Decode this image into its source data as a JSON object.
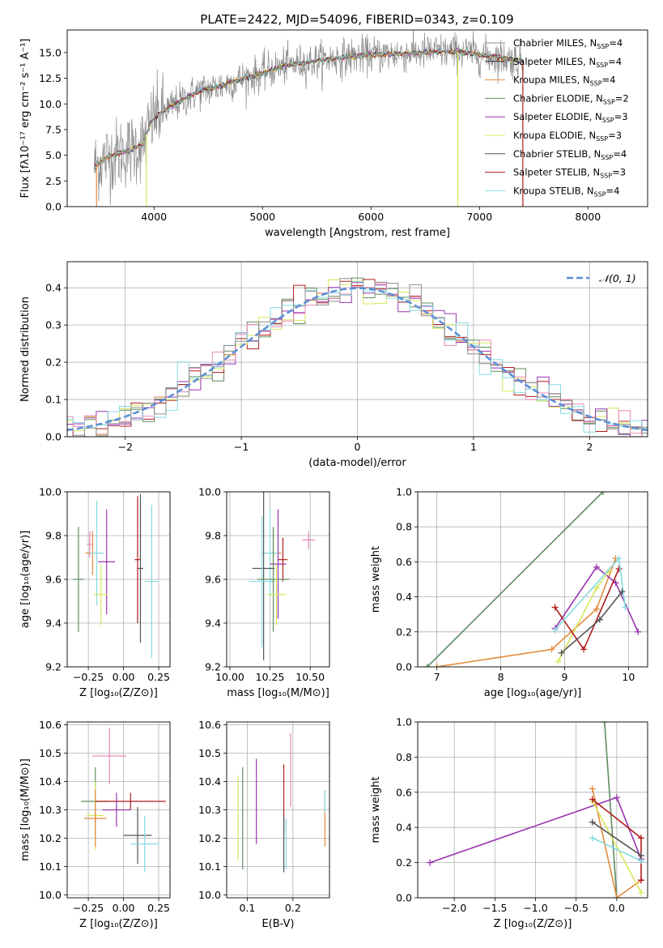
{
  "figure_title": "PLATE=2422, MJD=54096, FIBERID=0343, z=0.109",
  "model_colors": {
    "Chabrier MILES": "#8c8c8c",
    "Salpeter MILES": "#2b2b2b",
    "Kroupa MILES": "#e38a3d",
    "Chabrier ELODIE": "#5e8c5e",
    "Salpeter ELODIE": "#9a35b0",
    "Kroupa ELODIE": "#d8e65a",
    "Chabrier STELIB": "#555555",
    "Salpeter STELIB": "#b01c1c",
    "Kroupa STELIB": "#86dbe0",
    "Pink": "#e88ab8",
    "Normal": "#5b8ed6"
  },
  "chart_data": [
    {
      "id": "spectrum",
      "type": "line",
      "xlabel": "wavelength [Angstrom, rest frame]",
      "ylabel": "Flux [fλ10⁻¹⁷ erg cm⁻² s⁻¹ A⁻¹]",
      "xlim": [
        3200,
        8550
      ],
      "ylim": [
        0,
        17.2
      ],
      "xticks": [
        4000,
        5000,
        6000,
        7000,
        8000
      ],
      "yticks": [
        0.0,
        2.5,
        5.0,
        7.5,
        10.0,
        12.5,
        15.0
      ],
      "legend": [
        {
          "label": "Chabrier MILES, N_SSP=4",
          "color": "Chabrier MILES"
        },
        {
          "label": "Salpeter MILES, N_SSP=4",
          "color": "Salpeter MILES"
        },
        {
          "label": "Kroupa MILES, N_SSP=4",
          "color": "Kroupa MILES"
        },
        {
          "label": "Chabrier ELODIE, N_SSP=2",
          "color": "Chabrier ELODIE"
        },
        {
          "label": "Salpeter ELODIE, N_SSP=3",
          "color": "Salpeter ELODIE"
        },
        {
          "label": "Kroupa ELODIE, N_SSP=3",
          "color": "Kroupa ELODIE"
        },
        {
          "label": "Chabrier STELIB, N_SSP=4",
          "color": "Chabrier STELIB"
        },
        {
          "label": "Salpeter STELIB, N_SSP=3",
          "color": "Salpeter STELIB"
        },
        {
          "label": "Kroupa STELIB, N_SSP=4",
          "color": "Kroupa STELIB"
        }
      ],
      "legend_loc": "upper right",
      "continuum": [
        [
          3450,
          3.9
        ],
        [
          3550,
          4.7
        ],
        [
          3700,
          5.3
        ],
        [
          3800,
          5.6
        ],
        [
          3900,
          6.1
        ],
        [
          3950,
          7.6
        ],
        [
          4000,
          8.7
        ],
        [
          4200,
          10.0
        ],
        [
          4400,
          11.2
        ],
        [
          4600,
          11.7
        ],
        [
          4800,
          12.4
        ],
        [
          5000,
          13.0
        ],
        [
          5200,
          13.7
        ],
        [
          5500,
          14.2
        ],
        [
          5800,
          14.6
        ],
        [
          6000,
          14.8
        ],
        [
          6300,
          14.9
        ],
        [
          6600,
          15.1
        ],
        [
          6800,
          15.1
        ],
        [
          7000,
          14.8
        ],
        [
          7200,
          14.5
        ],
        [
          7400,
          14.2
        ]
      ],
      "data_range": [
        3450,
        7400
      ],
      "model_dropouts": [
        {
          "x": 3470,
          "color": "Kroupa MILES"
        },
        {
          "x": 3930,
          "color": "Kroupa ELODIE"
        },
        {
          "x": 6800,
          "color": "Kroupa ELODIE"
        },
        {
          "x": 7400,
          "color": "Salpeter STELIB"
        }
      ]
    },
    {
      "id": "residuals",
      "type": "line",
      "xlabel": "(data-model)/error",
      "ylabel": "Normed distribution",
      "xlim": [
        -2.5,
        2.5
      ],
      "ylim": [
        0,
        0.47
      ],
      "xticks": [
        -2,
        -1,
        0,
        1,
        2
      ],
      "yticks": [
        0.0,
        0.1,
        0.2,
        0.3,
        0.4
      ],
      "legend": [
        {
          "label": "𝒩(0, 1)",
          "style": "dashed",
          "color": "Normal"
        }
      ],
      "legend_loc": "upper right",
      "series_colors": [
        "Chabrier ELODIE",
        "Salpeter STELIB",
        "Kroupa ELODIE",
        "Salpeter ELODIE",
        "Pink",
        "Kroupa STELIB",
        "Chabrier MILES"
      ],
      "bin_width": 0.1
    },
    {
      "id": "age_vs_Z",
      "type": "scatter",
      "xlabel": "Z [log₁₀(Z/Z⊙)]",
      "ylabel": "age  [log₁₀(age/yr)]",
      "xlim": [
        -0.4,
        0.33
      ],
      "ylim": [
        9.2,
        10.0
      ],
      "xticks": [
        -0.25,
        0.0,
        0.25
      ],
      "xtick_labels": [
        "−0.25",
        "0.00",
        "0.25"
      ],
      "yticks": [
        9.2,
        9.4,
        9.6,
        9.8,
        10.0
      ],
      "points": [
        {
          "x": -0.24,
          "xerr": 0.02,
          "y": 9.76,
          "yerr": 0.06,
          "color": "Pink"
        },
        {
          "x": -0.22,
          "xerr": 0.05,
          "y": 9.72,
          "yerr": 0.1,
          "color": "Kroupa MILES"
        },
        {
          "x": -0.19,
          "xerr": 0.05,
          "y": 9.72,
          "yerr": 0.24,
          "color": "Kroupa STELIB"
        },
        {
          "x": -0.12,
          "xerr": 0.06,
          "y": 9.68,
          "yerr": 0.24,
          "color": "Salpeter ELODIE"
        },
        {
          "x": -0.32,
          "xerr": 0.04,
          "y": 9.6,
          "yerr": 0.24,
          "color": "Chabrier ELODIE"
        },
        {
          "x": -0.16,
          "xerr": 0.05,
          "y": 9.53,
          "yerr": 0.14,
          "color": "Kroupa ELODIE"
        },
        {
          "x": 0.12,
          "xerr": 0.02,
          "y": 9.65,
          "yerr": 0.34,
          "color": "Chabrier STELIB"
        },
        {
          "x": 0.1,
          "xerr": 0.02,
          "y": 9.69,
          "yerr": 0.29,
          "color": "Salpeter STELIB"
        },
        {
          "x": 0.2,
          "xerr": 0.05,
          "y": 9.59,
          "yerr": 0.35,
          "color": "Kroupa STELIB"
        }
      ]
    },
    {
      "id": "age_vs_mass",
      "type": "scatter",
      "xlabel": "mass [log₁₀(M/M⊙)]",
      "ylabel": "",
      "xlim": [
        9.98,
        10.62
      ],
      "ylim": [
        9.2,
        10.0
      ],
      "xticks": [
        10.0,
        10.25,
        10.5
      ],
      "xtick_labels": [
        "10.00",
        "10.25",
        "10.50"
      ],
      "yticks": [
        9.2,
        9.4,
        9.6,
        9.8,
        10.0
      ],
      "points": [
        {
          "x": 10.49,
          "xerr": 0.04,
          "y": 9.78,
          "yerr": 0.04,
          "color": "Pink"
        },
        {
          "x": 10.27,
          "xerr": 0.05,
          "y": 9.72,
          "yerr": 0.1,
          "color": "Kroupa MILES"
        },
        {
          "x": 10.25,
          "xerr": 0.05,
          "y": 9.72,
          "yerr": 0.2,
          "color": "Kroupa STELIB"
        },
        {
          "x": 10.3,
          "xerr": 0.05,
          "y": 9.67,
          "yerr": 0.25,
          "color": "Salpeter ELODIE"
        },
        {
          "x": 10.33,
          "xerr": 0.03,
          "y": 9.69,
          "yerr": 0.1,
          "color": "Salpeter STELIB"
        },
        {
          "x": 10.21,
          "xerr": 0.07,
          "y": 9.65,
          "yerr": 0.42,
          "color": "Chabrier STELIB"
        },
        {
          "x": 10.2,
          "xerr": 0.08,
          "y": 9.59,
          "yerr": 0.3,
          "color": "Kroupa STELIB"
        },
        {
          "x": 10.27,
          "xerr": 0.1,
          "y": 9.6,
          "yerr": 0.24,
          "color": "Chabrier ELODIE"
        },
        {
          "x": 10.29,
          "xerr": 0.06,
          "y": 9.53,
          "yerr": 0.14,
          "color": "Kroupa ELODIE"
        }
      ]
    },
    {
      "id": "weight_vs_age",
      "type": "line",
      "xlabel": "age  [log₁₀(age/yr)]",
      "ylabel": "mass weight",
      "xlim": [
        6.7,
        10.3
      ],
      "ylim": [
        0,
        1.0
      ],
      "xticks": [
        7,
        8,
        9,
        10
      ],
      "yticks": [
        0.0,
        0.2,
        0.4,
        0.6,
        0.8,
        1.0
      ],
      "series": [
        {
          "color": "Chabrier ELODIE",
          "points": [
            [
              6.85,
              0.0
            ],
            [
              9.6,
              1.0
            ]
          ]
        },
        {
          "color": "Kroupa MILES",
          "points": [
            [
              7.0,
              0.0
            ],
            [
              8.8,
              0.1
            ],
            [
              9.5,
              0.33
            ],
            [
              9.8,
              0.62
            ]
          ]
        },
        {
          "color": "Salpeter ELODIE",
          "points": [
            [
              8.85,
              0.22
            ],
            [
              9.5,
              0.57
            ],
            [
              9.8,
              0.48
            ],
            [
              10.15,
              0.2
            ]
          ]
        },
        {
          "color": "Kroupa ELODIE",
          "points": [
            [
              8.9,
              0.03
            ],
            [
              9.5,
              0.45
            ],
            [
              9.7,
              0.55
            ]
          ]
        },
        {
          "color": "Salpeter STELIB",
          "points": [
            [
              8.85,
              0.34
            ],
            [
              9.3,
              0.1
            ],
            [
              9.85,
              0.56
            ]
          ]
        },
        {
          "color": "Kroupa STELIB",
          "points": [
            [
              8.85,
              0.21
            ],
            [
              9.85,
              0.62
            ],
            [
              9.95,
              0.34
            ]
          ]
        },
        {
          "color": "Chabrier STELIB",
          "points": [
            [
              8.95,
              0.08
            ],
            [
              9.55,
              0.27
            ],
            [
              9.9,
              0.43
            ]
          ]
        }
      ]
    },
    {
      "id": "mass_vs_Z",
      "type": "scatter",
      "xlabel": "Z [log₁₀(Z/Z⊙)]",
      "ylabel": "mass [log₁₀(M/M⊙)]",
      "xlim": [
        -0.4,
        0.33
      ],
      "ylim": [
        9.99,
        10.61
      ],
      "xticks": [
        -0.25,
        0.0,
        0.25
      ],
      "xtick_labels": [
        "−0.25",
        "0.00",
        "0.25"
      ],
      "yticks": [
        10.0,
        10.1,
        10.2,
        10.3,
        10.4,
        10.5,
        10.6
      ],
      "points": [
        {
          "x": -0.1,
          "xerr": 0.12,
          "y": 10.49,
          "yerr": 0.1,
          "color": "Pink"
        },
        {
          "x": -0.2,
          "xerr": 0.1,
          "y": 10.33,
          "yerr": 0.12,
          "color": "Chabrier ELODIE"
        },
        {
          "x": 0.05,
          "xerr": 0.25,
          "y": 10.33,
          "yerr": 0.03,
          "color": "Salpeter STELIB"
        },
        {
          "x": -0.05,
          "xerr": 0.1,
          "y": 10.3,
          "yerr": 0.06,
          "color": "Salpeter ELODIE"
        },
        {
          "x": -0.2,
          "xerr": 0.06,
          "y": 10.28,
          "yerr": 0.12,
          "color": "Kroupa ELODIE"
        },
        {
          "x": -0.2,
          "xerr": 0.08,
          "y": 10.27,
          "yerr": 0.1,
          "color": "Kroupa MILES"
        },
        {
          "x": 0.1,
          "xerr": 0.1,
          "y": 10.21,
          "yerr": 0.1,
          "color": "Chabrier STELIB"
        },
        {
          "x": 0.15,
          "xerr": 0.1,
          "y": 10.18,
          "yerr": 0.1,
          "color": "Kroupa STELIB"
        }
      ]
    },
    {
      "id": "mass_vs_ebv",
      "type": "scatter",
      "xlabel": "E(B-V)",
      "ylabel": "",
      "xlim": [
        0.055,
        0.28
      ],
      "ylim": [
        9.99,
        10.61
      ],
      "xticks": [
        0.1,
        0.2
      ],
      "xtick_labels": [
        "0.1",
        "0.2"
      ],
      "yticks": [
        10.0,
        10.1,
        10.2,
        10.3,
        10.4,
        10.5,
        10.6
      ],
      "points": [
        {
          "x": 0.08,
          "y": 10.27,
          "yerr": 0.15,
          "color": "Kroupa ELODIE"
        },
        {
          "x": 0.09,
          "y": 10.27,
          "yerr": 0.18,
          "color": "Chabrier ELODIE"
        },
        {
          "x": 0.12,
          "y": 10.33,
          "yerr": 0.15,
          "color": "Salpeter ELODIE"
        },
        {
          "x": 0.18,
          "y": 10.34,
          "yerr": 0.12,
          "color": "Salpeter STELIB"
        },
        {
          "x": 0.18,
          "y": 10.18,
          "yerr": 0.1,
          "color": "Chabrier STELIB"
        },
        {
          "x": 0.185,
          "y": 10.18,
          "yerr": 0.09,
          "color": "Kroupa STELIB"
        },
        {
          "x": 0.195,
          "y": 10.44,
          "yerr": 0.13,
          "color": "Pink"
        },
        {
          "x": 0.27,
          "y": 10.27,
          "yerr": 0.1,
          "color": "Kroupa MILES"
        },
        {
          "x": 0.27,
          "y": 10.33,
          "yerr": 0.04,
          "color": "Kroupa STELIB"
        }
      ]
    },
    {
      "id": "weight_vs_Z",
      "type": "line",
      "xlabel": "Z [log₁₀(Z/Z⊙)]",
      "ylabel": "mass weight",
      "xlim": [
        -2.45,
        0.38
      ],
      "ylim": [
        0,
        1.0
      ],
      "xticks": [
        -2.0,
        -1.5,
        -1.0,
        -0.5,
        0.0
      ],
      "xtick_labels": [
        "−2.0",
        "−1.5",
        "−1.0",
        "−0.5",
        "0.0"
      ],
      "yticks": [
        0.0,
        0.2,
        0.4,
        0.6,
        0.8,
        1.0
      ],
      "series": [
        {
          "color": "Chabrier ELODIE",
          "points": [
            [
              -0.15,
              1.0
            ],
            [
              0.0,
              0.0
            ]
          ]
        },
        {
          "color": "Salpeter ELODIE",
          "points": [
            [
              -2.3,
              0.2
            ],
            [
              0.0,
              0.57
            ],
            [
              0.3,
              0.22
            ]
          ]
        },
        {
          "color": "Kroupa MILES",
          "points": [
            [
              -0.3,
              0.62
            ],
            [
              0.0,
              0.0
            ],
            [
              0.3,
              0.1
            ]
          ]
        },
        {
          "color": "Kroupa ELODIE",
          "points": [
            [
              -0.3,
              0.55
            ],
            [
              0.3,
              0.03
            ]
          ]
        },
        {
          "color": "Salpeter STELIB",
          "points": [
            [
              -0.3,
              0.56
            ],
            [
              0.3,
              0.34
            ],
            [
              0.3,
              0.1
            ]
          ]
        },
        {
          "color": "Kroupa STELIB",
          "points": [
            [
              -0.3,
              0.34
            ],
            [
              0.3,
              0.21
            ]
          ]
        },
        {
          "color": "Chabrier STELIB",
          "points": [
            [
              -0.3,
              0.43
            ],
            [
              0.3,
              0.24
            ]
          ]
        }
      ]
    }
  ]
}
